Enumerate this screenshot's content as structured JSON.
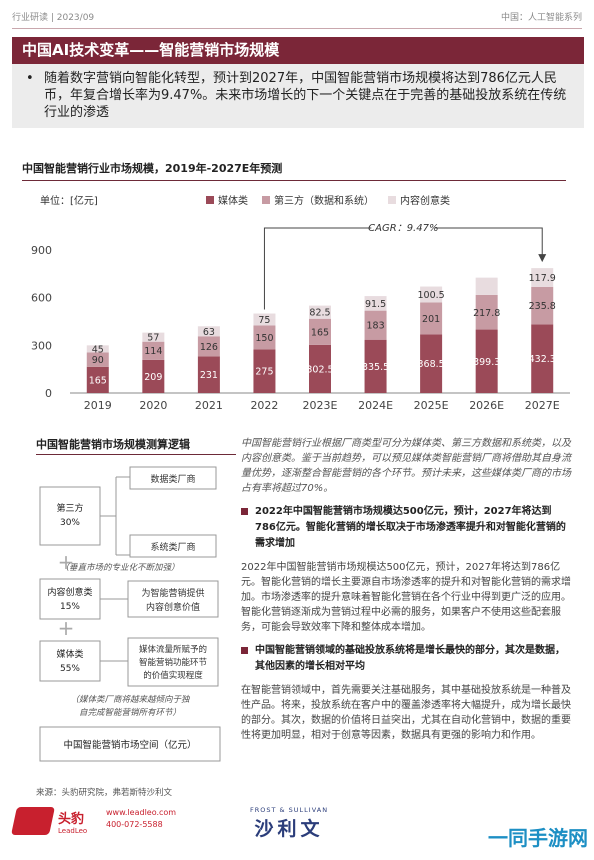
{
  "header": {
    "left": "行业研读 | 2023/09",
    "right": "中国：人工智能系列"
  },
  "page_title": "中国AI技术变革——智能营销市场规模",
  "intro": {
    "bullet": "•",
    "text": "随着数字营销向智能化转型，预计到2027年，中国智能营销市场规模将达到786亿元人民币，年复合增长率为9.47%。未来市场增长的下一个关键点在于完善的基础投放系统在传统行业的渗透"
  },
  "chart_title": "中国智能营销行业市场规模，2019年-2027E年预测",
  "unit_label": "单位：[亿元]",
  "chart_data": {
    "type": "bar",
    "stacked": true,
    "categories": [
      "2019",
      "2020",
      "2021",
      "2022",
      "2023E",
      "2024E",
      "2025E",
      "2026E",
      "2027E"
    ],
    "series": [
      {
        "name": "媒体类",
        "color": "#9b4a58",
        "values": [
          165,
          209,
          231,
          275,
          302.5,
          335.5,
          368.5,
          399.3,
          432.3
        ]
      },
      {
        "name": "第三方（数据和系统）",
        "color": "#c79ba3",
        "values": [
          90,
          114,
          126,
          150,
          165,
          183,
          201,
          217.8,
          235.8
        ]
      },
      {
        "name": "内容创意类",
        "color": "#e8dcdf",
        "values": [
          45,
          57,
          63,
          75,
          82.5,
          91.5,
          100.5,
          108.9,
          117.9
        ]
      }
    ],
    "value_labels": [
      [
        "165",
        "209",
        "231",
        "275",
        "302.5",
        "335.5",
        "368.5",
        "399.3",
        "432.3"
      ],
      [
        "90",
        "114",
        "126",
        "150",
        "165",
        "183",
        "201",
        "217.8",
        "235.8"
      ],
      [
        "45",
        "57",
        "63",
        "75",
        "82.5",
        "91.5",
        "100.5",
        "",
        "117.9"
      ]
    ],
    "ylim": [
      0,
      900
    ],
    "yticks": [
      "0",
      "300",
      "600",
      "900"
    ],
    "ytick_values": [
      0,
      300,
      600,
      900
    ],
    "annotation": "CAGR：9.47%",
    "annotation_from": "2022",
    "annotation_to": "2027E",
    "grid": false,
    "legend_position": "top"
  },
  "left_panel": {
    "title": "中国智能营销市场规模测算逻辑",
    "third_party_box": "第三方\n30%",
    "data_vendor": "数据类厂商",
    "system_vendor": "系统类厂商",
    "note1": "（垂直市场的专业化不断加强）",
    "content_box": "内容创意类\n15%",
    "content_desc": "为智能营销提供内容创意价值",
    "media_box": "媒体类\n55%",
    "media_desc": "媒体流量所赋予的智能营销功能环节的价值实现程度",
    "note2": "（媒体类厂商将越来越倾向于独自完成智能营销所有环节）",
    "market_space": "中国智能营销市场空间（亿元）",
    "plus": "+"
  },
  "right_col": {
    "italic": "中国智能营销行业根据厂商类型可分为媒体类、第三方数据和系统类，以及内容创意类。鉴于当前趋势，可以预见媒体类智能营销厂商将借助其自身流量优势，逐渐整合智能营销的各个环节。预计未来，这些媒体类厂商的市场占有率将超过70%。",
    "kp1": "2022年中国智能营销市场规模达500亿元，预计，2027年将达到786亿元。智能化营销的增长取决于市场渗透率提升和对智能化营销的需求增加",
    "para1": "2022年中国智能营销市场规模达500亿元，预计，2027年将达到786亿元。智能化营销的增长主要源自市场渗透率的提升和对智能化营销的需求增加。市场渗透率的提升意味着智能化营销在各个行业中得到更广泛的应用。智能化营销逐渐成为营销过程中必需的服务，如果客户不使用这些配套服务，可能会导致效率下降和整体成本增加。",
    "kp2": "中国智能营销领域的基础投放系统将是增长最快的部分，其次是数据，其他因素的增长相对平均",
    "para2": "在智能营销领域中，首先需要关注基础服务，其中基础投放系统是一种普及性产品。将来，投放系统在客户中的覆盖渗透率将大幅提升，成为增长最快的部分。其次，数据的价值将日益突出，尤其在自动化营销中，数据的重要性将更加明显，相对于创意等因素，数据具有更强的影响力和作用。"
  },
  "source": "来源：头豹研究院，弗若斯特沙利文",
  "footer": {
    "leadleo_cn": "头豹",
    "leadleo_en": "LeadLeo",
    "website": "www.leadleo.com",
    "phone": "400-072-5588",
    "fs_en": "FROST & SULLIVAN",
    "fs_cn": "沙利文",
    "watermark": "一同手游网"
  }
}
